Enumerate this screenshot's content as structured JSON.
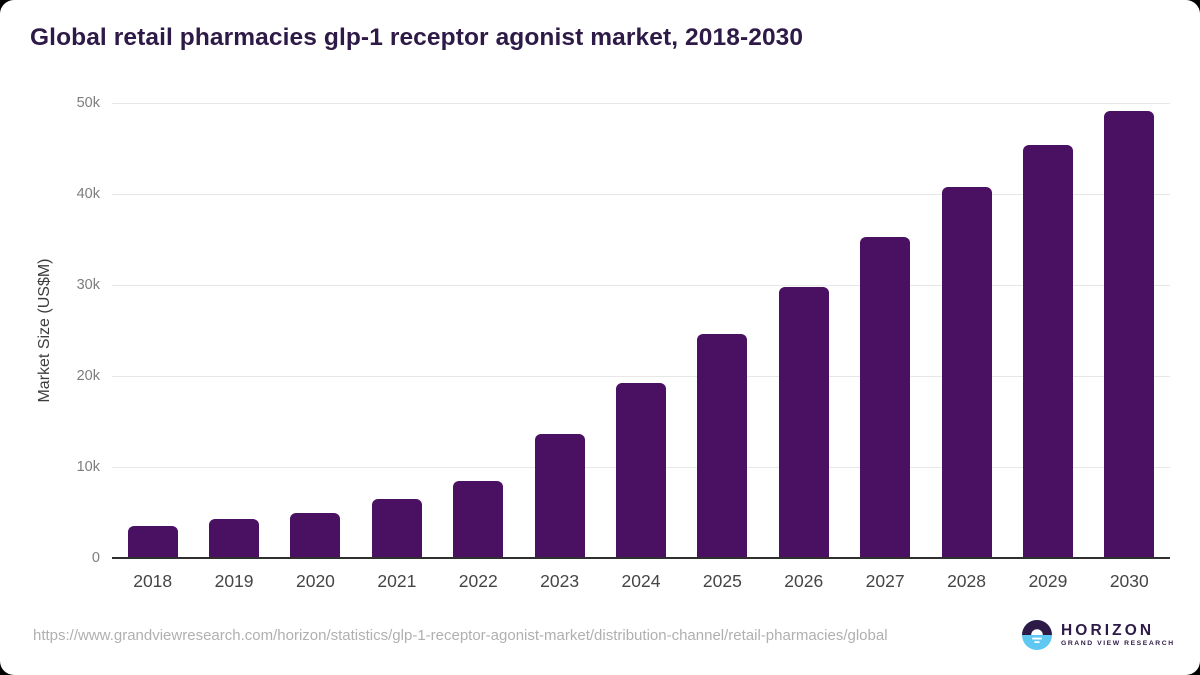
{
  "page": {
    "title": "Global retail pharmacies glp-1 receptor agonist market, 2018-2030"
  },
  "chart_data": {
    "type": "bar",
    "title": "Global retail pharmacies glp-1 receptor agonist market, 2018-2030",
    "categories": [
      "2018",
      "2019",
      "2020",
      "2021",
      "2022",
      "2023",
      "2024",
      "2025",
      "2026",
      "2027",
      "2028",
      "2029",
      "2030"
    ],
    "values": [
      3500,
      4300,
      5000,
      6500,
      8500,
      13600,
      19200,
      24600,
      29800,
      35300,
      40800,
      45400,
      49100
    ],
    "xlabel": "",
    "ylabel": "Market Size (US$M)",
    "ylim": [
      0,
      50000
    ],
    "yticks": [
      {
        "value": 0,
        "label": "0"
      },
      {
        "value": 10000,
        "label": "10k"
      },
      {
        "value": 20000,
        "label": "20k"
      },
      {
        "value": 30000,
        "label": "30k"
      },
      {
        "value": 40000,
        "label": "40k"
      },
      {
        "value": 50000,
        "label": "50k"
      }
    ],
    "grid": true,
    "legend": false,
    "bar_color": "#4a1163"
  },
  "footer": {
    "source_url": "https://www.grandviewresearch.com/horizon/statistics/glp-1-receptor-agonist-market/distribution-channel/retail-pharmacies/global"
  },
  "branding": {
    "logo_icon": "horizon-sunrise-circle-icon",
    "brand": "HORIZON",
    "tagline": "GRAND VIEW RESEARCH",
    "icon_purple": "#2e1a47",
    "icon_blue": "#5ec8f2"
  },
  "colors": {
    "background": "#ffffff",
    "outer_background": "#000000",
    "title_text": "#2e1a47",
    "grid_line": "#e7e7e7",
    "axis_line": "#2f2f2f",
    "y_tick_text": "#7d7d7d",
    "x_tick_text": "#454545",
    "source_text": "#b0b0b0"
  }
}
